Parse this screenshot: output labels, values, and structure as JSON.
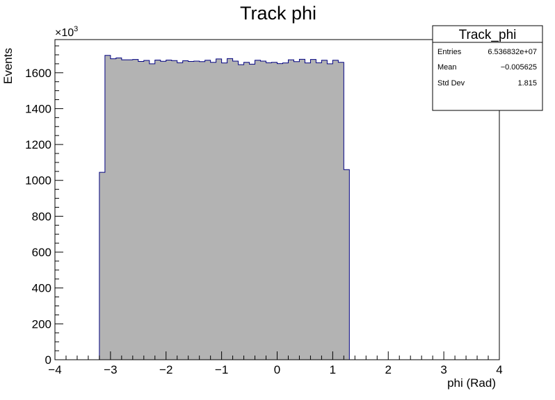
{
  "chart_data": {
    "type": "histogram",
    "title": "Track phi",
    "xlabel": "phi (Rad)",
    "ylabel": "Events",
    "y_multiplier_base": "×10",
    "y_multiplier_exp": "3",
    "xlim": [
      -4,
      4
    ],
    "ylim": [
      0,
      1785
    ],
    "x_ticks": [
      -4,
      -3,
      -2,
      -1,
      0,
      1,
      2,
      3,
      4
    ],
    "x_tick_labels": [
      "−4",
      "−3",
      "−2",
      "−1",
      "0",
      "1",
      "2",
      "3",
      "4"
    ],
    "y_ticks": [
      0,
      200,
      400,
      600,
      800,
      1000,
      1200,
      1400,
      1600
    ],
    "y_tick_labels": [
      "0",
      "200",
      "400",
      "600",
      "800",
      "1000",
      "1200",
      "1400",
      "1600"
    ],
    "grid": false,
    "fill_color": "#b3b3b3",
    "line_color": "#000080",
    "bin_edges_start": -3.2,
    "bin_width": 0.1,
    "values": [
      1045,
      1697,
      1678,
      1683,
      1672,
      1672,
      1674,
      1663,
      1669,
      1650,
      1671,
      1664,
      1671,
      1668,
      1656,
      1667,
      1663,
      1665,
      1662,
      1670,
      1658,
      1677,
      1655,
      1679,
      1665,
      1645,
      1658,
      1648,
      1670,
      1665,
      1656,
      1658,
      1651,
      1655,
      1672,
      1662,
      1675,
      1655,
      1674,
      1656,
      1670,
      1650,
      1670,
      1658,
      1060
    ]
  },
  "stats_box": {
    "title": "Track_phi",
    "rows": [
      {
        "label": "Entries",
        "value": "6.536832e+07"
      },
      {
        "label": "Mean",
        "value": "−0.005625"
      },
      {
        "label": "Std Dev",
        "value": "1.815"
      }
    ]
  }
}
